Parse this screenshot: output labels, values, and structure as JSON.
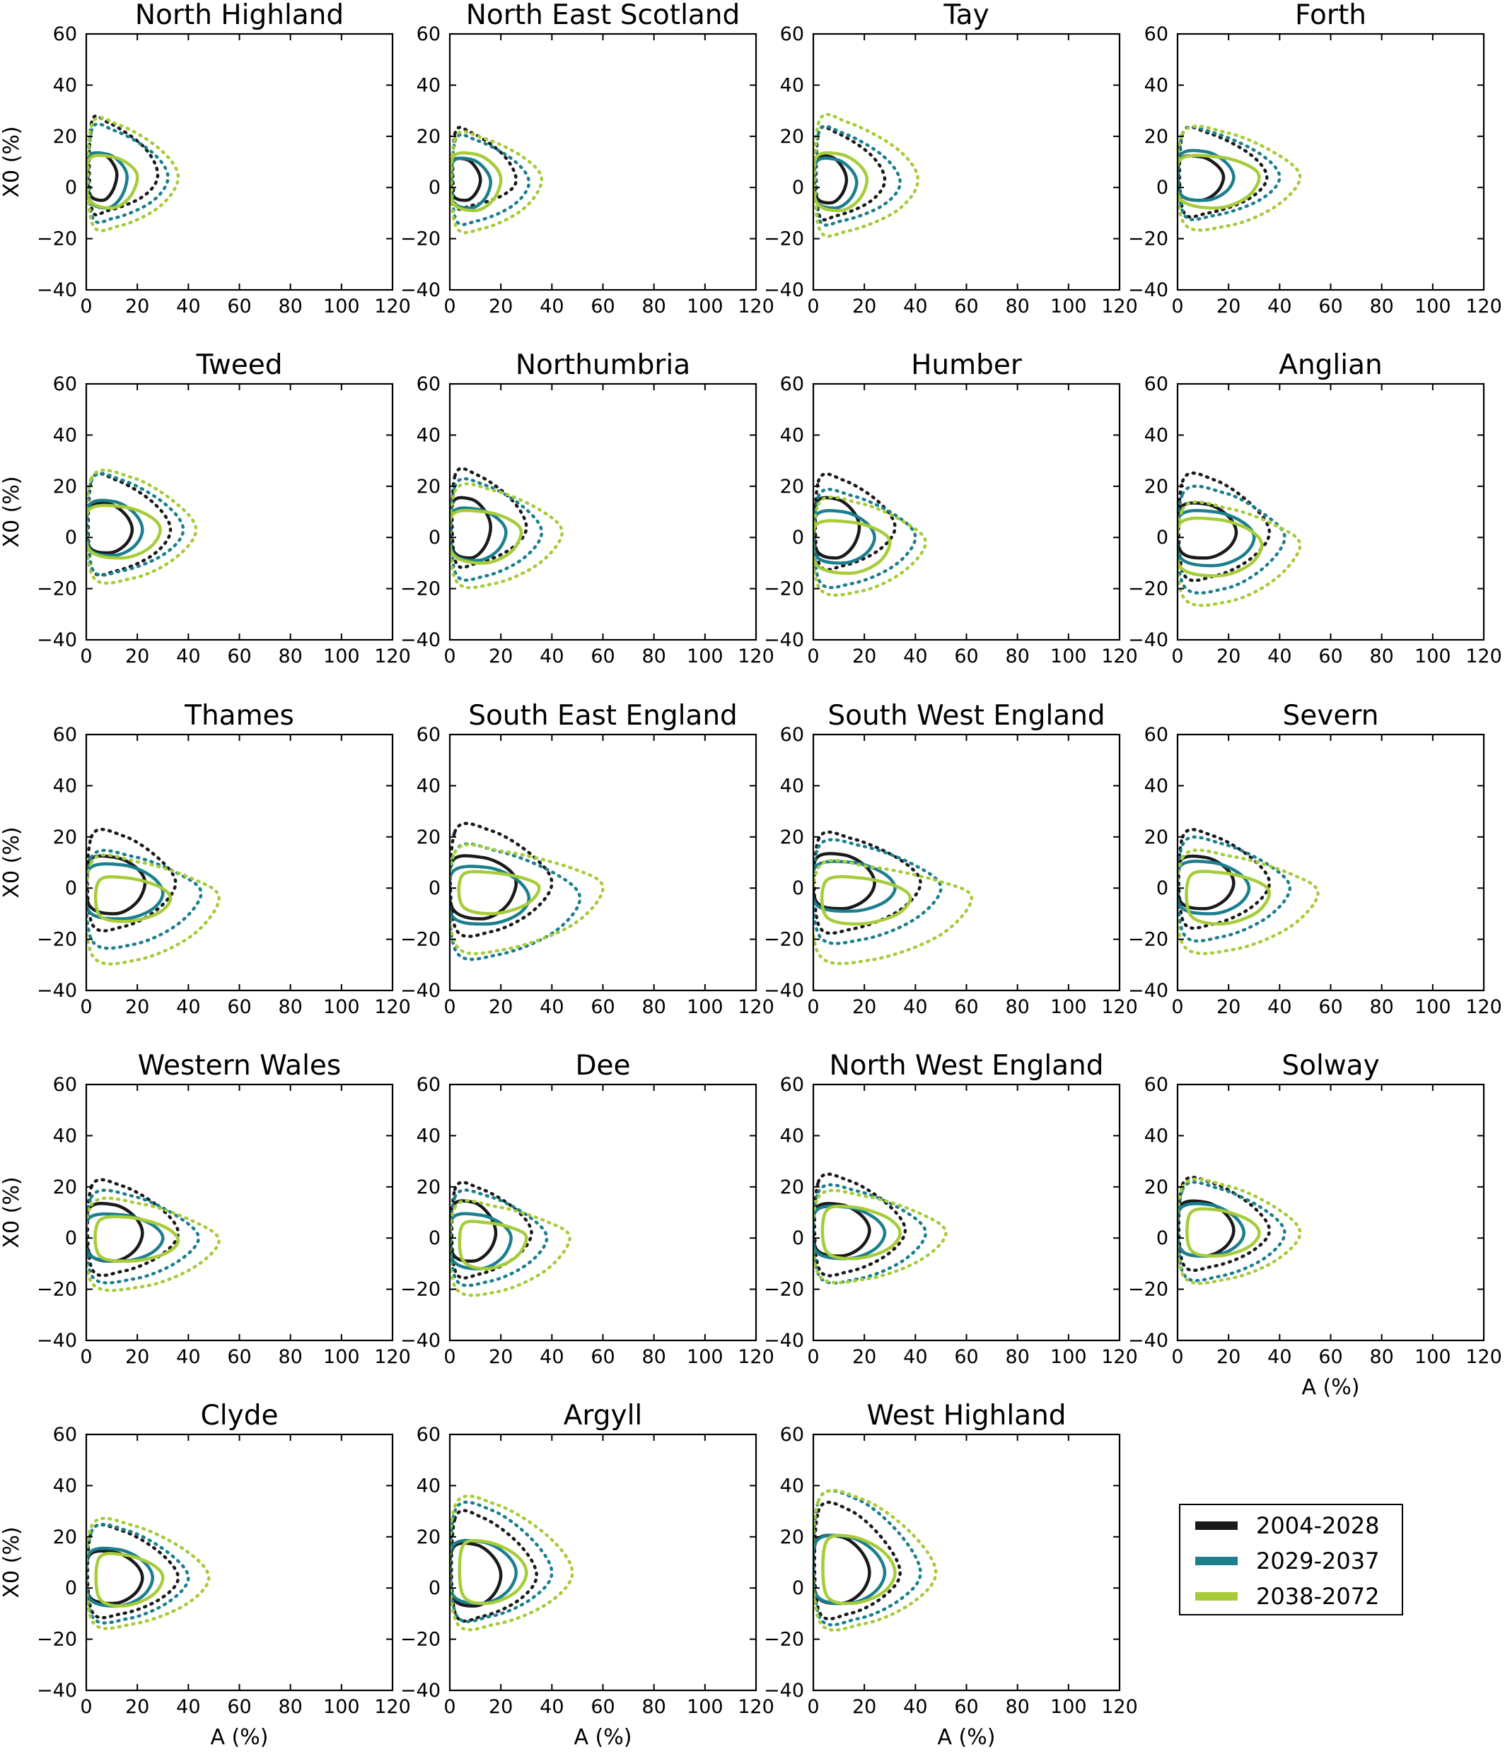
{
  "chart_data": {
    "type": "line",
    "xlabel": "A (%)",
    "ylabel": "X0 (%)",
    "xlim": [
      0,
      120
    ],
    "ylim": [
      -40,
      60
    ],
    "xticks": [
      0,
      20,
      40,
      60,
      80,
      100,
      120
    ],
    "yticks": [
      -40,
      -20,
      0,
      20,
      40,
      60
    ],
    "legend": {
      "placement": "bottom-right",
      "entries": [
        {
          "label": "2004-2028",
          "color": "#1a1a1a"
        },
        {
          "label": "2029-2037",
          "color": "#1b7f8e"
        },
        {
          "label": "2038-2072",
          "color": "#a6cc3a"
        }
      ]
    },
    "line_styles": {
      "inner_contour": "solid",
      "outer_contour": "dotted"
    },
    "panels": [
      {
        "title": "North Highland",
        "series": [
          {
            "x0": 12,
            "y0": 5,
            "xr": 8,
            "xl": 1,
            "yt": 8,
            "yb": 10,
            "ox": 28,
            "oxl": 2,
            "oyt": 20,
            "oyb": 14
          },
          {
            "x0": 16,
            "y0": 4,
            "xr": 8,
            "xl": 1,
            "yt": 9,
            "yb": 12,
            "ox": 32,
            "oxl": 2,
            "oyt": 18,
            "oyb": 16
          },
          {
            "x0": 20,
            "y0": 4,
            "xr": 10,
            "xl": 1,
            "yt": 8,
            "yb": 12,
            "ox": 36,
            "oxl": 2,
            "oyt": 20,
            "oyb": 19
          }
        ]
      },
      {
        "title": "North East Scotland",
        "series": [
          {
            "x0": 12,
            "y0": 3,
            "xr": 7,
            "xl": 1,
            "yt": 8,
            "yb": 8,
            "ox": 26,
            "oxl": 2,
            "oyt": 18,
            "oyb": 10
          },
          {
            "x0": 16,
            "y0": 2,
            "xr": 8,
            "xl": 1,
            "yt": 9,
            "yb": 10,
            "ox": 31,
            "oxl": 2,
            "oyt": 16,
            "oyb": 15
          },
          {
            "x0": 20,
            "y0": 3,
            "xr": 8,
            "xl": 1,
            "yt": 10,
            "yb": 12,
            "ox": 36,
            "oxl": 2,
            "oyt": 16,
            "oyb": 19
          }
        ]
      },
      {
        "title": "Tay",
        "series": [
          {
            "x0": 13,
            "y0": 3,
            "xr": 8,
            "xl": 1,
            "yt": 9,
            "yb": 9,
            "ox": 28,
            "oxl": 2,
            "oyt": 18,
            "oyb": 14
          },
          {
            "x0": 17,
            "y0": 2,
            "xr": 9,
            "xl": 1,
            "yt": 9,
            "yb": 10,
            "ox": 34,
            "oxl": 2,
            "oyt": 19,
            "oyb": 15
          },
          {
            "x0": 21,
            "y0": 3,
            "xr": 8,
            "xl": 1,
            "yt": 10,
            "yb": 12,
            "ox": 41,
            "oxl": 2,
            "oyt": 22,
            "oyb": 20
          }
        ]
      },
      {
        "title": "Forth",
        "series": [
          {
            "x0": 18,
            "y0": 4,
            "xr": 7,
            "xl": 1,
            "yt": 8,
            "yb": 9,
            "ox": 35,
            "oxl": 2,
            "oyt": 17,
            "oyb": 14
          },
          {
            "x0": 22,
            "y0": 4,
            "xr": 8,
            "xl": 1,
            "yt": 10,
            "yb": 9,
            "ox": 40,
            "oxl": 2,
            "oyt": 17,
            "oyb": 15
          },
          {
            "x0": 32,
            "y0": 4,
            "xr": 9,
            "xl": 1,
            "yt": 8,
            "yb": 12,
            "ox": 48,
            "oxl": 2,
            "oyt": 17,
            "oyb": 19
          }
        ]
      },
      {
        "title": "Tweed",
        "series": [
          {
            "x0": 18,
            "y0": 3,
            "xr": 9,
            "xl": 1,
            "yt": 10,
            "yb": 9,
            "ox": 33,
            "oxl": 2,
            "oyt": 19,
            "oyb": 16
          },
          {
            "x0": 22,
            "y0": 3,
            "xr": 9,
            "xl": 1,
            "yt": 11,
            "yb": 10,
            "ox": 38,
            "oxl": 2,
            "oyt": 19,
            "oyb": 16
          },
          {
            "x0": 29,
            "y0": 3,
            "xr": 8,
            "xl": 1,
            "yt": 9,
            "yb": 11,
            "ox": 43,
            "oxl": 2,
            "oyt": 20,
            "oyb": 19
          }
        ]
      },
      {
        "title": "Northumbria",
        "series": [
          {
            "x0": 16,
            "y0": 4,
            "xr": 8,
            "xl": 1,
            "yt": 11,
            "yb": 12,
            "ox": 30,
            "oxl": 2,
            "oyt": 20,
            "oyb": 14
          },
          {
            "x0": 22,
            "y0": 2,
            "xr": 9,
            "xl": 1,
            "yt": 9,
            "yb": 11,
            "ox": 36,
            "oxl": 2,
            "oyt": 18,
            "oyb": 17
          },
          {
            "x0": 28,
            "y0": 2,
            "xr": 9,
            "xl": 1,
            "yt": 8,
            "yb": 12,
            "ox": 44,
            "oxl": 2,
            "oyt": 16,
            "oyb": 20
          }
        ]
      },
      {
        "title": "Humber",
        "series": [
          {
            "x0": 18,
            "y0": 4,
            "xr": 9,
            "xl": 1,
            "yt": 11,
            "yb": 12,
            "ox": 32,
            "oxl": 2,
            "oyt": 18,
            "oyb": 15
          },
          {
            "x0": 24,
            "y0": 0,
            "xr": 9,
            "xl": 1,
            "yt": 10,
            "yb": 10,
            "ox": 40,
            "oxl": 2,
            "oyt": 16,
            "oyb": 18
          },
          {
            "x0": 30,
            "y0": -2,
            "xr": 9,
            "xl": 1,
            "yt": 8,
            "yb": 12,
            "ox": 44,
            "oxl": 2,
            "oyt": 15,
            "oyb": 19
          }
        ]
      },
      {
        "title": "Anglian",
        "series": [
          {
            "x0": 23,
            "y0": 2,
            "xr": 9,
            "xl": 1,
            "yt": 11,
            "yb": 10,
            "ox": 36,
            "oxl": 2,
            "oyt": 20,
            "oyb": 17
          },
          {
            "x0": 30,
            "y0": 0,
            "xr": 10,
            "xl": 1,
            "yt": 10,
            "yb": 11,
            "ox": 42,
            "oxl": 2,
            "oyt": 17,
            "oyb": 20
          },
          {
            "x0": 33,
            "y0": -3,
            "xr": 10,
            "xl": 1,
            "yt": 10,
            "yb": 12,
            "ox": 48,
            "oxl": 2,
            "oyt": 14,
            "oyb": 22
          }
        ]
      },
      {
        "title": "Thames",
        "series": [
          {
            "x0": 23,
            "y0": 2,
            "xr": 10,
            "xl": 1,
            "yt": 10,
            "yb": 12,
            "ox": 35,
            "oxl": 2,
            "oyt": 18,
            "oyb": 17
          },
          {
            "x0": 30,
            "y0": -2,
            "xr": 9,
            "xl": 1,
            "yt": 11,
            "yb": 10,
            "ox": 45,
            "oxl": 2,
            "oyt": 14,
            "oyb": 20
          },
          {
            "x0": 33,
            "y0": -4,
            "xr": 9,
            "xl": 5,
            "yt": 8,
            "yb": 9,
            "ox": 52,
            "oxl": 2,
            "oyt": 14,
            "oyb": 24
          }
        ]
      },
      {
        "title": "South East England",
        "series": [
          {
            "x0": 26,
            "y0": 2,
            "xr": 9,
            "xl": 1,
            "yt": 10,
            "yb": 14,
            "ox": 40,
            "oxl": 2,
            "oyt": 20,
            "oyb": 19
          },
          {
            "x0": 31,
            "y0": -4,
            "xr": 9,
            "xl": 1,
            "yt": 12,
            "yb": 10,
            "ox": 51,
            "oxl": 2,
            "oyt": 18,
            "oyb": 22
          },
          {
            "x0": 35,
            "y0": 0,
            "xr": 9,
            "xl": 5,
            "yt": 6,
            "yb": 10,
            "ox": 60,
            "oxl": 2,
            "oyt": 14,
            "oyb": 24
          }
        ]
      },
      {
        "title": "South West England",
        "series": [
          {
            "x0": 24,
            "y0": 2,
            "xr": 9,
            "xl": 1,
            "yt": 11,
            "yb": 10,
            "ox": 42,
            "oxl": 2,
            "oyt": 17,
            "oyb": 18
          },
          {
            "x0": 32,
            "y0": 0,
            "xr": 10,
            "xl": 1,
            "yt": 10,
            "yb": 9,
            "ox": 50,
            "oxl": 2,
            "oyt": 16,
            "oyb": 20
          },
          {
            "x0": 38,
            "y0": -4,
            "xr": 10,
            "xl": 5,
            "yt": 8,
            "yb": 10,
            "ox": 62,
            "oxl": 2,
            "oyt": 12,
            "oyb": 24
          }
        ]
      },
      {
        "title": "Severn",
        "series": [
          {
            "x0": 22,
            "y0": 2,
            "xr": 9,
            "xl": 1,
            "yt": 10,
            "yb": 10,
            "ox": 36,
            "oxl": 2,
            "oyt": 18,
            "oyb": 16
          },
          {
            "x0": 28,
            "y0": 0,
            "xr": 9,
            "xl": 1,
            "yt": 10,
            "yb": 10,
            "ox": 44,
            "oxl": 2,
            "oyt": 17,
            "oyb": 19
          },
          {
            "x0": 36,
            "y0": -2,
            "xr": 9,
            "xl": 5,
            "yt": 8,
            "yb": 12,
            "ox": 55,
            "oxl": 2,
            "oyt": 14,
            "oyb": 22
          }
        ]
      },
      {
        "title": "Western Wales",
        "series": [
          {
            "x0": 22,
            "y0": 2,
            "xr": 9,
            "xl": 1,
            "yt": 11,
            "yb": 11,
            "ox": 36,
            "oxl": 2,
            "oyt": 18,
            "oyb": 15
          },
          {
            "x0": 30,
            "y0": 0,
            "xr": 10,
            "xl": 1,
            "yt": 9,
            "yb": 9,
            "ox": 44,
            "oxl": 2,
            "oyt": 16,
            "oyb": 16
          },
          {
            "x0": 36,
            "y0": -1,
            "xr": 10,
            "xl": 5,
            "yt": 9,
            "yb": 8,
            "ox": 52,
            "oxl": 2,
            "oyt": 14,
            "oyb": 18
          }
        ]
      },
      {
        "title": "Dee",
        "series": [
          {
            "x0": 18,
            "y0": 2,
            "xr": 9,
            "xl": 1,
            "yt": 12,
            "yb": 11,
            "ox": 32,
            "oxl": 2,
            "oyt": 17,
            "oyb": 16
          },
          {
            "x0": 24,
            "y0": 0,
            "xr": 9,
            "xl": 1,
            "yt": 9,
            "yb": 12,
            "ox": 38,
            "oxl": 2,
            "oyt": 16,
            "oyb": 17
          },
          {
            "x0": 30,
            "y0": 0,
            "xr": 9,
            "xl": 5,
            "yt": 6,
            "yb": 12,
            "ox": 47,
            "oxl": 2,
            "oyt": 12,
            "oyb": 21
          }
        ]
      },
      {
        "title": "North West England",
        "series": [
          {
            "x0": 22,
            "y0": 3,
            "xr": 9,
            "xl": 1,
            "yt": 10,
            "yb": 10,
            "ox": 36,
            "oxl": 2,
            "oyt": 19,
            "oyb": 16
          },
          {
            "x0": 28,
            "y0": 2,
            "xr": 10,
            "xl": 1,
            "yt": 10,
            "yb": 10,
            "ox": 44,
            "oxl": 2,
            "oyt": 16,
            "oyb": 18
          },
          {
            "x0": 34,
            "y0": 2,
            "xr": 9,
            "xl": 5,
            "yt": 10,
            "yb": 10,
            "ox": 52,
            "oxl": 2,
            "oyt": 14,
            "oyb": 18
          }
        ]
      },
      {
        "title": "Solway",
        "series": [
          {
            "x0": 22,
            "y0": 3,
            "xr": 9,
            "xl": 1,
            "yt": 11,
            "yb": 10,
            "ox": 36,
            "oxl": 2,
            "oyt": 18,
            "oyb": 14
          },
          {
            "x0": 26,
            "y0": 2,
            "xr": 9,
            "xl": 1,
            "yt": 11,
            "yb": 9,
            "ox": 42,
            "oxl": 2,
            "oyt": 17,
            "oyb": 17
          },
          {
            "x0": 32,
            "y0": 2,
            "xr": 9,
            "xl": 5,
            "yt": 9,
            "yb": 9,
            "ox": 48,
            "oxl": 2,
            "oyt": 18,
            "oyb": 18
          }
        ]
      },
      {
        "title": "Clyde",
        "series": [
          {
            "x0": 22,
            "y0": 4,
            "xr": 9,
            "xl": 1,
            "yt": 10,
            "yb": 10,
            "ox": 36,
            "oxl": 2,
            "oyt": 18,
            "oyb": 14
          },
          {
            "x0": 26,
            "y0": 4,
            "xr": 10,
            "xl": 1,
            "yt": 11,
            "yb": 11,
            "ox": 40,
            "oxl": 2,
            "oyt": 18,
            "oyb": 16
          },
          {
            "x0": 30,
            "y0": 4,
            "xr": 10,
            "xl": 5,
            "yt": 9,
            "yb": 11,
            "ox": 48,
            "oxl": 2,
            "oyt": 20,
            "oyb": 18
          }
        ]
      },
      {
        "title": "Argyll",
        "series": [
          {
            "x0": 20,
            "y0": 5,
            "xr": 9,
            "xl": 1,
            "yt": 12,
            "yb": 12,
            "ox": 34,
            "oxl": 2,
            "oyt": 22,
            "oyb": 16
          },
          {
            "x0": 26,
            "y0": 6,
            "xr": 10,
            "xl": 1,
            "yt": 12,
            "yb": 12,
            "ox": 40,
            "oxl": 2,
            "oyt": 24,
            "oyb": 17
          },
          {
            "x0": 30,
            "y0": 6,
            "xr": 10,
            "xl": 5,
            "yt": 12,
            "yb": 12,
            "ox": 48,
            "oxl": 2,
            "oyt": 26,
            "oyb": 20
          }
        ]
      },
      {
        "title": "West Highland",
        "series": [
          {
            "x0": 22,
            "y0": 6,
            "xr": 9,
            "xl": 1,
            "yt": 14,
            "yb": 12,
            "ox": 34,
            "oxl": 2,
            "oyt": 24,
            "oyb": 16
          },
          {
            "x0": 28,
            "y0": 6,
            "xr": 10,
            "xl": 1,
            "yt": 14,
            "yb": 12,
            "ox": 42,
            "oxl": 2,
            "oyt": 28,
            "oyb": 18
          },
          {
            "x0": 32,
            "y0": 6,
            "xr": 10,
            "xl": 5,
            "yt": 14,
            "yb": 12,
            "ox": 48,
            "oxl": 2,
            "oyt": 28,
            "oyb": 20
          }
        ]
      }
    ]
  }
}
